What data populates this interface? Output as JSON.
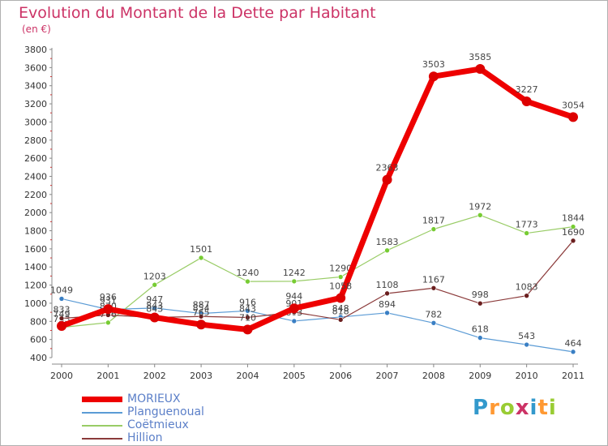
{
  "title": "Evolution du Montant de la Dette par Habitant",
  "subtitle": "(en €)",
  "logo": {
    "text": "Proxiti",
    "letters": [
      {
        "ch": "P",
        "color": "#3399cc"
      },
      {
        "ch": "r",
        "color": "#ff9933"
      },
      {
        "ch": "o",
        "color": "#99cc33"
      },
      {
        "ch": "x",
        "color": "#cc3366"
      },
      {
        "ch": "i",
        "color": "#3399cc"
      },
      {
        "ch": "t",
        "color": "#ff9933"
      },
      {
        "ch": "i",
        "color": "#99cc33"
      }
    ]
  },
  "chart_data": {
    "type": "line",
    "x": [
      "2000",
      "2001",
      "2002",
      "2003",
      "2004",
      "2005",
      "2006",
      "2007",
      "2008",
      "2009",
      "2010",
      "2011"
    ],
    "ylim": [
      400,
      3800
    ],
    "yticks": [
      400,
      600,
      800,
      1000,
      1200,
      1400,
      1600,
      1800,
      2000,
      2200,
      2400,
      2600,
      2800,
      3000,
      3200,
      3400,
      3600,
      3800
    ],
    "grid": false,
    "legend_position": "bottom-left",
    "series": [
      {
        "name": "Planguenoual",
        "color": "#5b9bd5",
        "marker": "#3a7fc4",
        "width": 1.2,
        "values": [
          1049,
          931,
          947,
          887,
          916,
          803,
          848,
          894,
          782,
          618,
          543,
          464
        ],
        "labels": [
          "1049",
          "931",
          "947",
          "887",
          "916",
          "803",
          "848",
          "894",
          "782",
          "618",
          "543",
          "464"
        ]
      },
      {
        "name": "Coëtmieux",
        "color": "#99cc66",
        "marker": "#77cc33",
        "width": 1.2,
        "values": [
          733,
          786,
          1203,
          1501,
          1240,
          1242,
          1290,
          1583,
          1817,
          1972,
          1773,
          1844
        ],
        "labels": [
          "733",
          "786",
          "1203",
          "1501",
          "1240",
          "1242",
          "1290",
          "1583",
          "1817",
          "1972",
          "1773",
          "1844"
        ]
      },
      {
        "name": "Hillion",
        "color": "#8b3a3a",
        "marker": "#6b1f1f",
        "width": 1.2,
        "values": [
          833,
          870,
          843,
          854,
          843,
          901,
          818,
          1108,
          1167,
          998,
          1083,
          1690
        ],
        "labels": [
          "833",
          "870",
          "843",
          "854",
          "843",
          "901",
          "818",
          "1108",
          "1167",
          "998",
          "1083",
          "1690"
        ]
      },
      {
        "name": "MORIEUX",
        "color": "#ee0000",
        "marker": "#dd0000",
        "width": 7,
        "values": [
          749,
          936,
          843,
          765,
          710,
          944,
          1058,
          2363,
          3503,
          3585,
          3227,
          3054
        ],
        "labels": [
          "749",
          "936",
          "843",
          "765",
          "710",
          "944",
          "1058",
          "2363",
          "3503",
          "3585",
          "3227",
          "3054"
        ]
      }
    ]
  }
}
